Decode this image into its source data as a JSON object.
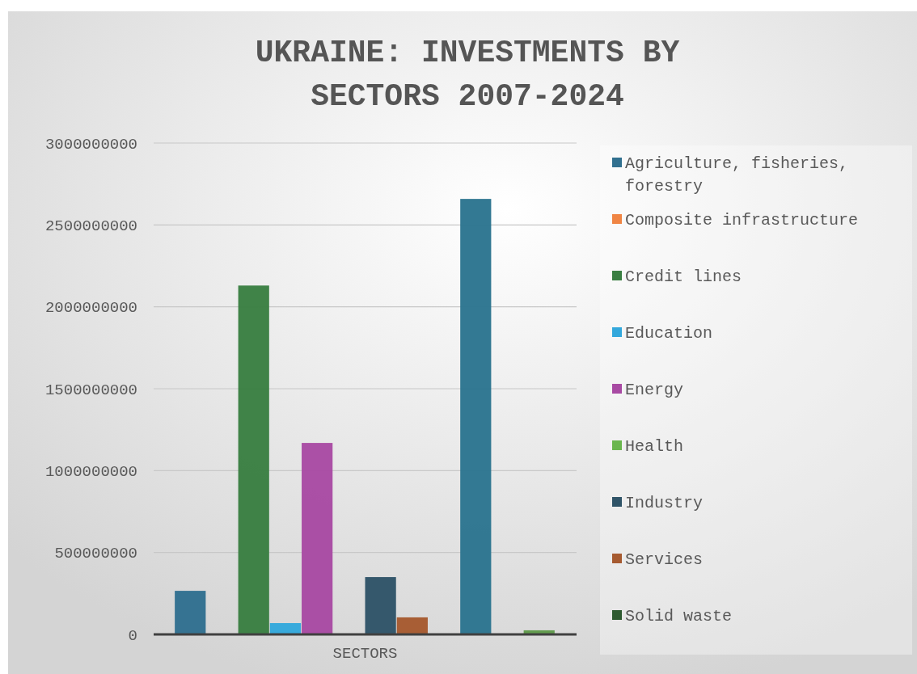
{
  "chart_data": {
    "type": "bar",
    "title": "UKRAINE: INVESTMENTS BY SECTORS 2007-2024",
    "categories": [
      "SECTORS"
    ],
    "series": [
      {
        "name": "Agriculture, fisheries, forestry",
        "color": "#31708f",
        "values": [
          266000000
        ]
      },
      {
        "name": "Composite infrastructure",
        "color": "#f08544",
        "values": [
          0
        ]
      },
      {
        "name": "Credit lines",
        "color": "#3a7f42",
        "values": [
          2130000000
        ]
      },
      {
        "name": "Education",
        "color": "#33a8dc",
        "values": [
          69000000
        ]
      },
      {
        "name": "Energy",
        "color": "#a84aa3",
        "values": [
          1169000000
        ]
      },
      {
        "name": "Health",
        "color": "#6ab64e",
        "values": [
          0
        ]
      },
      {
        "name": "Industry",
        "color": "#305468",
        "values": [
          350000000
        ]
      },
      {
        "name": "Services",
        "color": "#a65a30",
        "values": [
          104000000
        ]
      },
      {
        "name": "Solid waste",
        "color": "#2e5a30",
        "values": [
          0
        ]
      },
      {
        "color": "#2c7590",
        "values": [
          2659000000
        ]
      },
      {
        "color": "#f4a06c",
        "values": [
          0
        ]
      },
      {
        "color": "#5f9a4a",
        "values": [
          25000000
        ]
      }
    ],
    "ylim": [
      0,
      3000000000
    ],
    "yticks": [
      0,
      500000000,
      1000000000,
      1500000000,
      2000000000,
      2500000000,
      3000000000
    ],
    "grid": "y",
    "legend": "right"
  }
}
